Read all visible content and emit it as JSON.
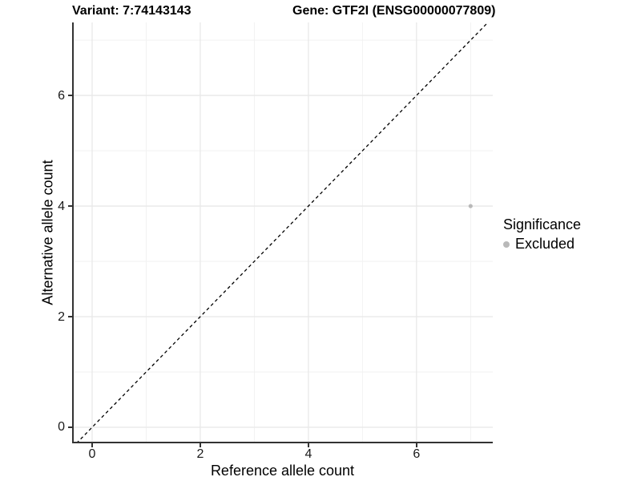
{
  "chart_data": {
    "type": "scatter",
    "title_left": "Variant: 7:74143143",
    "title_right": "Gene: GTF2I (ENSG00000077809)",
    "xlabel": "Reference allele count",
    "ylabel": "Alternative allele count",
    "xlim": [
      -0.37,
      7.41
    ],
    "ylim": [
      -0.29,
      7.32
    ],
    "xticks": [
      0,
      2,
      4,
      6
    ],
    "yticks": [
      0,
      2,
      4,
      6
    ],
    "xticks_minor": [
      1,
      3,
      5,
      7
    ],
    "yticks_minor": [
      1,
      3,
      5,
      7
    ],
    "grid": "major+minor",
    "reference_line": {
      "type": "identity y=x",
      "style": "dashed",
      "color": "#000000"
    },
    "series": [
      {
        "name": "Excluded",
        "color": "#b9b9b9",
        "points": [
          {
            "x": 7,
            "y": 4
          }
        ]
      }
    ],
    "legend": {
      "position": "right",
      "title": "Significance",
      "items": [
        {
          "label": "Excluded",
          "color": "#b9b9b9",
          "marker": "circle"
        }
      ]
    },
    "colors": {
      "axis_line": "#333333",
      "tick_label": "#1a1a1a",
      "grid_major": "#e8e8e8",
      "grid_minor": "#f2f2f2",
      "title": "#000000",
      "background": "#ffffff"
    }
  }
}
